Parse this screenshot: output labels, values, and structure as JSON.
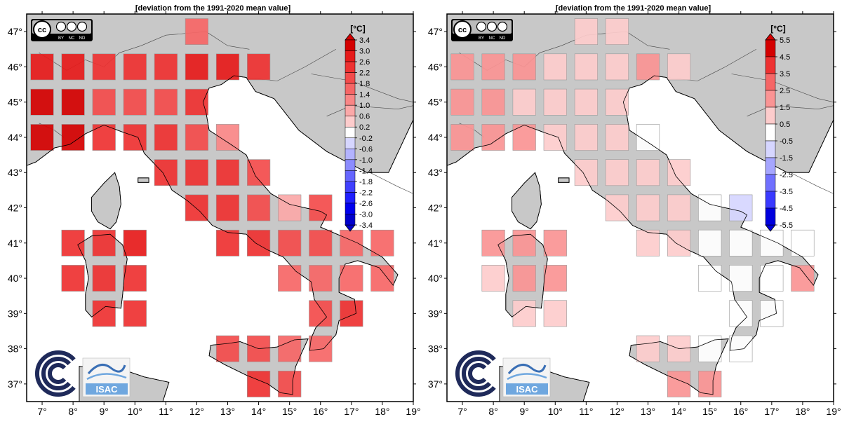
{
  "panels": [
    {
      "title": "[deviation from the 1991-2020 mean value]",
      "colorbar": {
        "unit": "[°C]",
        "ticks": [
          "3.4",
          "3.0",
          "2.6",
          "2.2",
          "1.8",
          "1.4",
          "1.0",
          "0.6",
          "0.2",
          "-0.2",
          "-0.6",
          "-1.0",
          "-1.4",
          "-1.8",
          "-2.2",
          "-2.6",
          "-3.0",
          "-3.4"
        ],
        "colors": [
          "#d40000",
          "#e61a1a",
          "#ee3131",
          "#f34b4b",
          "#f66666",
          "#f98686",
          "#fba8a8",
          "#fdcccc",
          "#ffffff",
          "#d6d6ff",
          "#b3b3ff",
          "#8c8cff",
          "#6666ff",
          "#4040ff",
          "#1f1fff",
          "#0000ee",
          "#0000cc"
        ]
      },
      "cells": [
        {
          "lon": 12,
          "lat": 47,
          "value": 1.5
        },
        {
          "lon": 7,
          "lat": 46,
          "value": 2.7
        },
        {
          "lon": 8,
          "lat": 46,
          "value": 2.6
        },
        {
          "lon": 9,
          "lat": 46,
          "value": 2.5
        },
        {
          "lon": 10,
          "lat": 46,
          "value": 2.3
        },
        {
          "lon": 11,
          "lat": 46,
          "value": 2.5
        },
        {
          "lon": 12,
          "lat": 46,
          "value": 2.6
        },
        {
          "lon": 13,
          "lat": 46,
          "value": 2.6
        },
        {
          "lon": 14,
          "lat": 46,
          "value": 2.5
        },
        {
          "lon": 7,
          "lat": 45,
          "value": 3.0
        },
        {
          "lon": 8,
          "lat": 45,
          "value": 3.2
        },
        {
          "lon": 9,
          "lat": 45,
          "value": 2.0
        },
        {
          "lon": 10,
          "lat": 45,
          "value": 2.0
        },
        {
          "lon": 11,
          "lat": 45,
          "value": 2.1
        },
        {
          "lon": 12,
          "lat": 45,
          "value": 2.4
        },
        {
          "lon": 7,
          "lat": 44,
          "value": 3.2
        },
        {
          "lon": 8,
          "lat": 44,
          "value": 3.0
        },
        {
          "lon": 9,
          "lat": 44,
          "value": 2.4
        },
        {
          "lon": 10,
          "lat": 44,
          "value": 2.4
        },
        {
          "lon": 11,
          "lat": 44,
          "value": 2.4
        },
        {
          "lon": 12,
          "lat": 44,
          "value": 2.0
        },
        {
          "lon": 13,
          "lat": 44,
          "value": 1.2
        },
        {
          "lon": 11,
          "lat": 43,
          "value": 2.3
        },
        {
          "lon": 12,
          "lat": 43,
          "value": 2.3
        },
        {
          "lon": 13,
          "lat": 43,
          "value": 2.2
        },
        {
          "lon": 14,
          "lat": 43,
          "value": 1.8
        },
        {
          "lon": 12,
          "lat": 42,
          "value": 2.3
        },
        {
          "lon": 13,
          "lat": 42,
          "value": 2.4
        },
        {
          "lon": 14,
          "lat": 42,
          "value": 1.8
        },
        {
          "lon": 15,
          "lat": 42,
          "value": 0.9
        },
        {
          "lon": 16,
          "lat": 42,
          "value": 1.8
        },
        {
          "lon": 8,
          "lat": 41,
          "value": 2.3
        },
        {
          "lon": 9,
          "lat": 41,
          "value": 2.4
        },
        {
          "lon": 10,
          "lat": 41,
          "value": 2.6
        },
        {
          "lon": 13,
          "lat": 41,
          "value": 2.2
        },
        {
          "lon": 14,
          "lat": 41,
          "value": 2.2
        },
        {
          "lon": 15,
          "lat": 41,
          "value": 2.1
        },
        {
          "lon": 16,
          "lat": 41,
          "value": 1.9
        },
        {
          "lon": 17,
          "lat": 41,
          "value": 1.5
        },
        {
          "lon": 18,
          "lat": 41,
          "value": 1.5
        },
        {
          "lon": 8,
          "lat": 40,
          "value": 2.2
        },
        {
          "lon": 9,
          "lat": 40,
          "value": 2.3
        },
        {
          "lon": 10,
          "lat": 40,
          "value": 2.4
        },
        {
          "lon": 15,
          "lat": 40,
          "value": 1.4
        },
        {
          "lon": 16,
          "lat": 40,
          "value": 1.5
        },
        {
          "lon": 17,
          "lat": 40,
          "value": 1.4
        },
        {
          "lon": 18,
          "lat": 40,
          "value": 1.5
        },
        {
          "lon": 9,
          "lat": 39,
          "value": 2.2
        },
        {
          "lon": 10,
          "lat": 39,
          "value": 2.2
        },
        {
          "lon": 16,
          "lat": 39,
          "value": 2.0
        },
        {
          "lon": 17,
          "lat": 39,
          "value": 2.2
        },
        {
          "lon": 13,
          "lat": 38,
          "value": 2.0
        },
        {
          "lon": 14,
          "lat": 38,
          "value": 2.0
        },
        {
          "lon": 15,
          "lat": 38,
          "value": 1.6
        },
        {
          "lon": 16,
          "lat": 38,
          "value": 1.4
        },
        {
          "lon": 14,
          "lat": 37,
          "value": 2.4
        },
        {
          "lon": 15,
          "lat": 37,
          "value": 2.0
        }
      ]
    },
    {
      "title": "[deviation from the 1991-2020 mean value]",
      "colorbar": {
        "unit": "[°C]",
        "ticks": [
          "5.5",
          "4.5",
          "3.5",
          "2.5",
          "1.5",
          "0.5",
          "-0.5",
          "-1.5",
          "-2.5",
          "-3.5",
          "-4.5",
          "-5.5"
        ],
        "colors": [
          "#d40000",
          "#ee3131",
          "#f66666",
          "#fa9494",
          "#fdcccc",
          "#ffffff",
          "#d6d6ff",
          "#a6a6ff",
          "#7070ff",
          "#3a3aff",
          "#0000dd"
        ]
      },
      "cells": [
        {
          "lon": 11,
          "lat": 47,
          "value": 0.9
        },
        {
          "lon": 12,
          "lat": 47,
          "value": 1.0
        },
        {
          "lon": 7,
          "lat": 46,
          "value": 1.7
        },
        {
          "lon": 8,
          "lat": 46,
          "value": 1.7
        },
        {
          "lon": 9,
          "lat": 46,
          "value": 1.7
        },
        {
          "lon": 10,
          "lat": 46,
          "value": 1.4
        },
        {
          "lon": 11,
          "lat": 46,
          "value": 1.0
        },
        {
          "lon": 12,
          "lat": 46,
          "value": 1.2
        },
        {
          "lon": 13,
          "lat": 46,
          "value": 2.0
        },
        {
          "lon": 14,
          "lat": 46,
          "value": 1.2
        },
        {
          "lon": 7,
          "lat": 45,
          "value": 1.7
        },
        {
          "lon": 8,
          "lat": 45,
          "value": 1.8
        },
        {
          "lon": 9,
          "lat": 45,
          "value": 1.0
        },
        {
          "lon": 10,
          "lat": 45,
          "value": 1.0
        },
        {
          "lon": 11,
          "lat": 45,
          "value": 1.0
        },
        {
          "lon": 12,
          "lat": 45,
          "value": 1.2
        },
        {
          "lon": 7,
          "lat": 44,
          "value": 1.6
        },
        {
          "lon": 8,
          "lat": 44,
          "value": 1.6
        },
        {
          "lon": 9,
          "lat": 44,
          "value": 1.6
        },
        {
          "lon": 10,
          "lat": 44,
          "value": 1.2
        },
        {
          "lon": 11,
          "lat": 44,
          "value": 1.1
        },
        {
          "lon": 12,
          "lat": 44,
          "value": 1.0
        },
        {
          "lon": 13,
          "lat": 44,
          "value": 0.2
        },
        {
          "lon": 11,
          "lat": 43,
          "value": 0.8
        },
        {
          "lon": 12,
          "lat": 43,
          "value": 1.0
        },
        {
          "lon": 13,
          "lat": 43,
          "value": 1.0
        },
        {
          "lon": 14,
          "lat": 43,
          "value": 1.0
        },
        {
          "lon": 12,
          "lat": 42,
          "value": 1.0
        },
        {
          "lon": 13,
          "lat": 42,
          "value": 1.0
        },
        {
          "lon": 14,
          "lat": 42,
          "value": 1.0
        },
        {
          "lon": 15,
          "lat": 42,
          "value": 0.3
        },
        {
          "lon": 16,
          "lat": 42,
          "value": -0.8
        },
        {
          "lon": 8,
          "lat": 41,
          "value": 1.5
        },
        {
          "lon": 9,
          "lat": 41,
          "value": 1.5
        },
        {
          "lon": 10,
          "lat": 41,
          "value": 1.5
        },
        {
          "lon": 13,
          "lat": 41,
          "value": 1.0
        },
        {
          "lon": 14,
          "lat": 41,
          "value": 1.1
        },
        {
          "lon": 15,
          "lat": 41,
          "value": 0.3
        },
        {
          "lon": 16,
          "lat": 41,
          "value": 0.3
        },
        {
          "lon": 17,
          "lat": 41,
          "value": 0.3
        },
        {
          "lon": 18,
          "lat": 41,
          "value": 0.3
        },
        {
          "lon": 8,
          "lat": 40,
          "value": 0.9
        },
        {
          "lon": 9,
          "lat": 40,
          "value": 1.5
        },
        {
          "lon": 10,
          "lat": 40,
          "value": 1.6
        },
        {
          "lon": 15,
          "lat": 40,
          "value": 0.3
        },
        {
          "lon": 16,
          "lat": 40,
          "value": 0.3
        },
        {
          "lon": 17,
          "lat": 40,
          "value": 0.3
        },
        {
          "lon": 18,
          "lat": 40,
          "value": 1.6
        },
        {
          "lon": 9,
          "lat": 39,
          "value": 1.0
        },
        {
          "lon": 10,
          "lat": 39,
          "value": 1.0
        },
        {
          "lon": 16,
          "lat": 39,
          "value": 0.3
        },
        {
          "lon": 17,
          "lat": 39,
          "value": 0.3
        },
        {
          "lon": 13,
          "lat": 38,
          "value": 1.0
        },
        {
          "lon": 14,
          "lat": 38,
          "value": 1.0
        },
        {
          "lon": 15,
          "lat": 38,
          "value": 0.3
        },
        {
          "lon": 16,
          "lat": 38,
          "value": 0.3
        },
        {
          "lon": 14,
          "lat": 37,
          "value": 1.8
        },
        {
          "lon": 15,
          "lat": 37,
          "value": 1.5
        }
      ]
    }
  ],
  "axes": {
    "lon_labels": [
      "7°",
      "8°",
      "9°",
      "10°",
      "11°",
      "12°",
      "13°",
      "14°",
      "15°",
      "16°",
      "17°",
      "18°",
      "19°"
    ],
    "lat_labels": [
      "47°",
      "46°",
      "45°",
      "44°",
      "43°",
      "42°",
      "41°",
      "40°",
      "39°",
      "38°",
      "37°"
    ]
  },
  "license": [
    "BY",
    "NC",
    "ND"
  ],
  "logo_text": "ISAC",
  "colors": {
    "land": "#c8c8c8",
    "sea": "#ffffff",
    "frame": "#000000"
  }
}
